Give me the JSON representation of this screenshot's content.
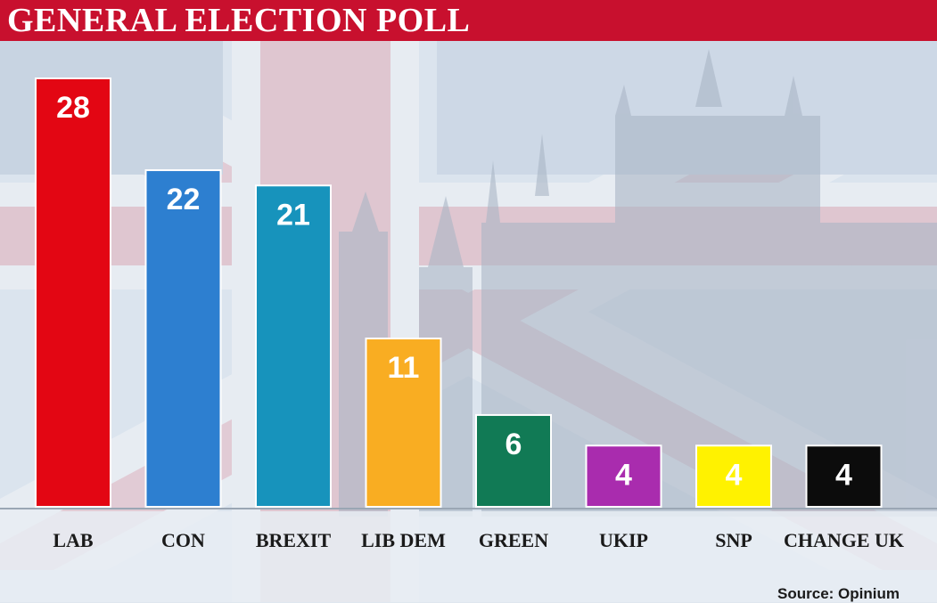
{
  "header": {
    "title": "GENERAL ELECTION POLL"
  },
  "source": "Source: Opinium",
  "colors": {
    "header": "#c8102e",
    "LAB": "#e30613",
    "CON": "#2d7fd0",
    "BREXIT": "#1793bc",
    "LIB DEM": "#f9ad22",
    "GREEN": "#117a55",
    "UKIP": "#a92cae",
    "SNP": "#fff200",
    "CHANGE UK": "#0c0c0c"
  },
  "chart_data": {
    "type": "bar",
    "title": "GENERAL ELECTION POLL",
    "categories": [
      "LAB",
      "CON",
      "BREXIT",
      "LIB DEM",
      "GREEN",
      "UKIP",
      "SNP",
      "CHANGE UK"
    ],
    "values": [
      28,
      22,
      21,
      11,
      6,
      4,
      4,
      4
    ],
    "xlabel": "",
    "ylabel": "",
    "ylim": [
      0,
      28
    ],
    "grid": false,
    "data_labels": true
  }
}
